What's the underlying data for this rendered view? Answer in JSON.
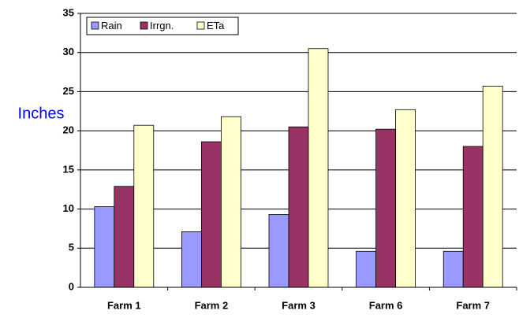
{
  "chart_data": {
    "type": "bar",
    "y_label": "Inches",
    "categories": [
      "Farm 1",
      "Farm 2",
      "Farm 3",
      "Farm 6",
      "Farm 7"
    ],
    "series": [
      {
        "name": "Rain",
        "color": "#9999ff",
        "values": [
          10.3,
          7.1,
          9.3,
          4.6,
          4.6
        ]
      },
      {
        "name": "Irrgn.",
        "color": "#993366",
        "values": [
          12.9,
          18.6,
          20.5,
          20.2,
          18.0
        ]
      },
      {
        "name": "ETa",
        "color": "#ffffcc",
        "values": [
          20.7,
          21.8,
          30.5,
          22.7,
          25.7
        ]
      }
    ],
    "ylim": [
      0,
      35
    ],
    "yticks": [
      0,
      5,
      10,
      15,
      20,
      25,
      30,
      35
    ],
    "grid": true,
    "legend": "top-left"
  }
}
